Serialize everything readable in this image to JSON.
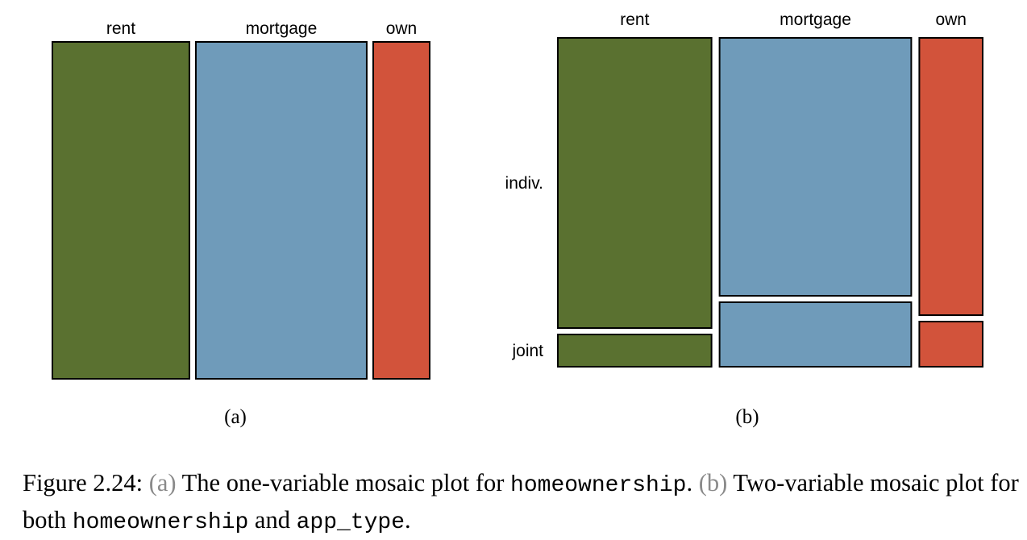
{
  "chart_data": [
    {
      "type": "mosaic",
      "panel_label": "(a)",
      "variable": "homeownership",
      "categories": [
        "rent",
        "mortgage",
        "own"
      ],
      "proportions": [
        0.376,
        0.469,
        0.155
      ],
      "colors": [
        "#5a7130",
        "#6f9bba",
        "#d2533b"
      ]
    },
    {
      "type": "mosaic",
      "panel_label": "(b)",
      "variables": [
        "homeownership",
        "app_type"
      ],
      "categories": [
        "rent",
        "mortgage",
        "own"
      ],
      "proportions": [
        0.376,
        0.469,
        0.155
      ],
      "row_labels": [
        "indiv.",
        "joint"
      ],
      "conditional_proportions": {
        "rent": [
          0.9,
          0.1
        ],
        "mortgage": [
          0.8,
          0.2
        ],
        "own": [
          0.86,
          0.14
        ]
      },
      "colors": [
        "#5a7130",
        "#6f9bba",
        "#d2533b"
      ]
    }
  ],
  "caption": {
    "fig_label": "Figure 2.24:",
    "a_marker": "(a)",
    "a_text": "The one-variable mosaic plot for",
    "a_var": "homeownership",
    "a_end": ".",
    "b_marker": "(b)",
    "b_text": "Two-variable mosaic plot for both",
    "b_var1": "homeownership",
    "b_and": "and",
    "b_var2": "app_type",
    "b_end": "."
  }
}
